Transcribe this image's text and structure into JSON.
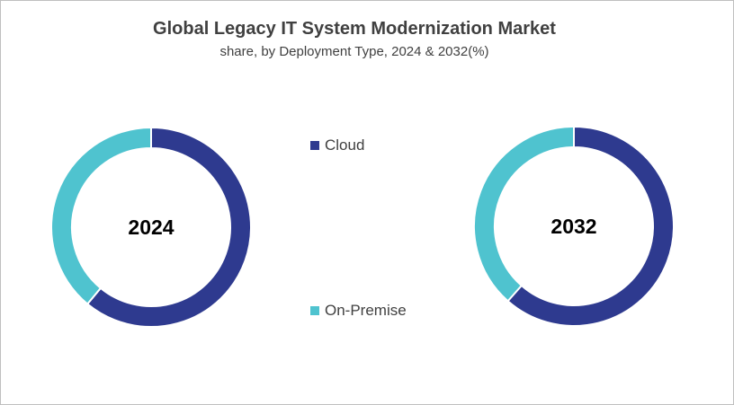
{
  "chart_data": {
    "type": "pie",
    "variant": "donut",
    "title": "Global Legacy IT System Modernization  Market",
    "subtitle": "share, by Deployment Type, 2024 & 2032(%)",
    "categories": [
      "Cloud",
      "On-Premise"
    ],
    "colors": {
      "Cloud": "#2e3a8f",
      "On-Premise": "#4fc3cf"
    },
    "legend": {
      "placement": "center",
      "entries": [
        "Cloud",
        "On-Premise"
      ]
    },
    "charts": [
      {
        "label": "2024",
        "values": [
          61,
          39
        ]
      },
      {
        "label": "2032",
        "values": [
          61.5,
          38.5
        ]
      }
    ]
  }
}
